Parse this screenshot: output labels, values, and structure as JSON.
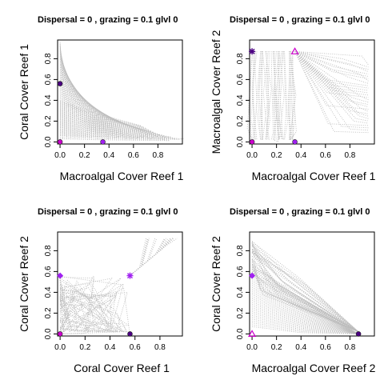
{
  "chart_data": [
    {
      "type": "scatter",
      "title": "Dispersal =  0 , grazing =  0.1 glvl 0",
      "xlabel": "Macroalgal Cover Reef 1",
      "ylabel": "Coral Cover Reef 1",
      "xlim": [
        -0.02,
        1.0
      ],
      "ylim": [
        -0.02,
        0.98
      ],
      "xticks": [
        "0.0",
        "0.2",
        "0.4",
        "0.6",
        "0.8"
      ],
      "yticks": [
        "0.0",
        "0.2",
        "0.4",
        "0.6",
        "0.8"
      ],
      "trajectory_pattern": "fan",
      "equilibria": [
        {
          "x": 0.0,
          "y": 0.56,
          "marker": "dot",
          "color": "#4b0082"
        },
        {
          "x": 0.0,
          "y": 0.0,
          "marker": "dot",
          "color": "#cc00cc"
        },
        {
          "x": 0.35,
          "y": 0.0,
          "marker": "dot",
          "color": "#a020f0"
        }
      ]
    },
    {
      "type": "scatter",
      "title": "Dispersal =  0 , grazing =  0.1 glvl 0",
      "xlabel": "Macroalgal Cover Reef 1",
      "ylabel": "Macroalgal Cover Reef 2",
      "xlim": [
        -0.02,
        1.0
      ],
      "ylim": [
        -0.02,
        0.98
      ],
      "xticks": [
        "0.0",
        "0.2",
        "0.4",
        "0.6",
        "0.8"
      ],
      "yticks": [
        "0.0",
        "0.2",
        "0.4",
        "0.6",
        "0.8"
      ],
      "trajectory_pattern": "box",
      "equilibria": [
        {
          "x": 0.0,
          "y": 0.87,
          "marker": "star",
          "color": "#4b0082"
        },
        {
          "x": 0.35,
          "y": 0.87,
          "marker": "triangle",
          "color": "#cc00cc"
        },
        {
          "x": 0.0,
          "y": 0.0,
          "marker": "dot",
          "color": "#cc00cc"
        },
        {
          "x": 0.35,
          "y": 0.0,
          "marker": "dot",
          "color": "#a020f0"
        }
      ]
    },
    {
      "type": "scatter",
      "title": "Dispersal =  0 , grazing =  0.1 glvl 0",
      "xlabel": "Coral Cover Reef 1",
      "ylabel": "Coral Cover Reef 2",
      "xlim": [
        -0.02,
        0.98
      ],
      "ylim": [
        -0.02,
        0.98
      ],
      "xticks": [
        "0.0",
        "0.2",
        "0.4",
        "0.6",
        "0.8"
      ],
      "yticks": [
        "0.0",
        "0.2",
        "0.4",
        "0.6",
        "0.8"
      ],
      "trajectory_pattern": "tangle",
      "equilibria": [
        {
          "x": 0.0,
          "y": 0.56,
          "marker": "diamond",
          "color": "#a020f0"
        },
        {
          "x": 0.56,
          "y": 0.56,
          "marker": "star",
          "color": "#a020f0"
        },
        {
          "x": 0.0,
          "y": 0.0,
          "marker": "dot",
          "color": "#cc00cc"
        },
        {
          "x": 0.56,
          "y": 0.0,
          "marker": "dot",
          "color": "#4b0082"
        }
      ]
    },
    {
      "type": "scatter",
      "title": "Dispersal =  0 , grazing =  0.1 glvl 0",
      "xlabel": "Macroalgal Cover Reef 2",
      "ylabel": "Coral Cover Reef 2",
      "xlim": [
        -0.02,
        1.0
      ],
      "ylim": [
        -0.02,
        0.98
      ],
      "xticks": [
        "0.0",
        "0.2",
        "0.4",
        "0.6",
        "0.8"
      ],
      "yticks": [
        "0.0",
        "0.2",
        "0.4",
        "0.6",
        "0.8"
      ],
      "trajectory_pattern": "converge",
      "equilibria": [
        {
          "x": 0.0,
          "y": 0.56,
          "marker": "diamond",
          "color": "#a020f0"
        },
        {
          "x": 0.0,
          "y": 0.0,
          "marker": "triangle",
          "color": "#cc00cc"
        },
        {
          "x": 0.87,
          "y": 0.0,
          "marker": "dot",
          "color": "#4b0082"
        }
      ]
    }
  ]
}
